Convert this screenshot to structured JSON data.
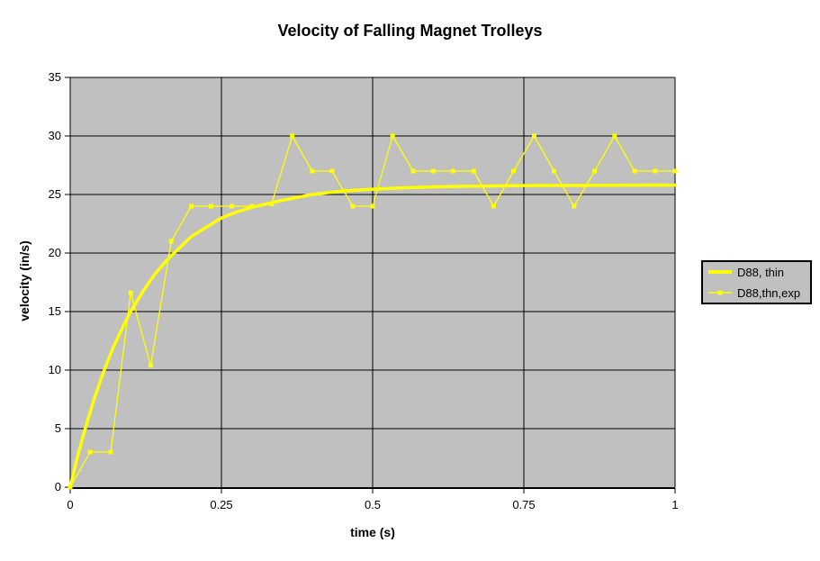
{
  "chart_data": {
    "type": "line",
    "title": "Velocity of Falling Magnet Trolleys",
    "xlabel": "time (s)",
    "ylabel": "velocity (in/s)",
    "xlim": [
      0,
      1
    ],
    "ylim": [
      0,
      35
    ],
    "x_ticks": [
      0,
      0.25,
      0.5,
      0.75,
      1
    ],
    "x_tick_labels": [
      "0",
      "0.25",
      "0.5",
      "0.75",
      "1"
    ],
    "y_ticks": [
      0,
      5,
      10,
      15,
      20,
      25,
      30,
      35
    ],
    "y_tick_labels": [
      "0",
      "5",
      "10",
      "15",
      "20",
      "25",
      "30",
      "35"
    ],
    "grid": true,
    "legend_position": "right",
    "colors": {
      "series": "#ffff00",
      "plot_background": "#c0c0c0",
      "gridline": "#000000",
      "axis": "#000000",
      "legend_background": "#c0c0c0",
      "legend_border": "#000000",
      "text": "#000000",
      "chart_background": "#ffffff"
    },
    "series": [
      {
        "name": "D88, thin",
        "style": "thick-smooth-line",
        "color": "#ffff00",
        "line_width": 3.5,
        "markers": false,
        "model": {
          "v_terminal": 25.8,
          "tau_s": 0.115
        },
        "x": [
          0,
          0.01,
          0.02,
          0.03,
          0.04,
          0.05,
          0.06,
          0.07,
          0.08,
          0.09,
          0.1,
          0.12,
          0.14,
          0.16,
          0.18,
          0.2,
          0.225,
          0.25,
          0.275,
          0.3,
          0.35,
          0.4,
          0.45,
          0.5,
          0.55,
          0.6,
          0.65,
          0.7,
          0.75,
          0.8,
          0.85,
          0.9,
          0.95,
          1.0
        ],
        "y": [
          0,
          2.2,
          4.1,
          5.9,
          7.6,
          9.1,
          10.5,
          11.8,
          12.9,
          14.0,
          15.0,
          16.7,
          18.2,
          19.4,
          20.4,
          21.4,
          22.2,
          23.0,
          23.5,
          23.9,
          24.5,
          25.0,
          25.3,
          25.45,
          25.57,
          25.65,
          25.7,
          25.73,
          25.76,
          25.77,
          25.78,
          25.79,
          25.8,
          25.8
        ]
      },
      {
        "name": "D88,thn,exp",
        "style": "thin-line-with-markers",
        "color": "#ffff00",
        "line_width": 1.3,
        "markers": true,
        "marker_shape": "square",
        "marker_size": 5,
        "x": [
          0,
          0.033,
          0.067,
          0.1,
          0.133,
          0.167,
          0.2,
          0.233,
          0.267,
          0.3,
          0.333,
          0.367,
          0.4,
          0.433,
          0.467,
          0.5,
          0.533,
          0.567,
          0.6,
          0.633,
          0.667,
          0.7,
          0.733,
          0.767,
          0.8,
          0.833,
          0.867,
          0.9,
          0.933,
          0.967,
          1.0
        ],
        "y": [
          0,
          3,
          3,
          16.6,
          10.4,
          21,
          24,
          24,
          24,
          24,
          24.2,
          30,
          27,
          27,
          24,
          24,
          30,
          27,
          27,
          27,
          27,
          24,
          27,
          30,
          27,
          24,
          27,
          30,
          27,
          27,
          27
        ]
      }
    ]
  }
}
